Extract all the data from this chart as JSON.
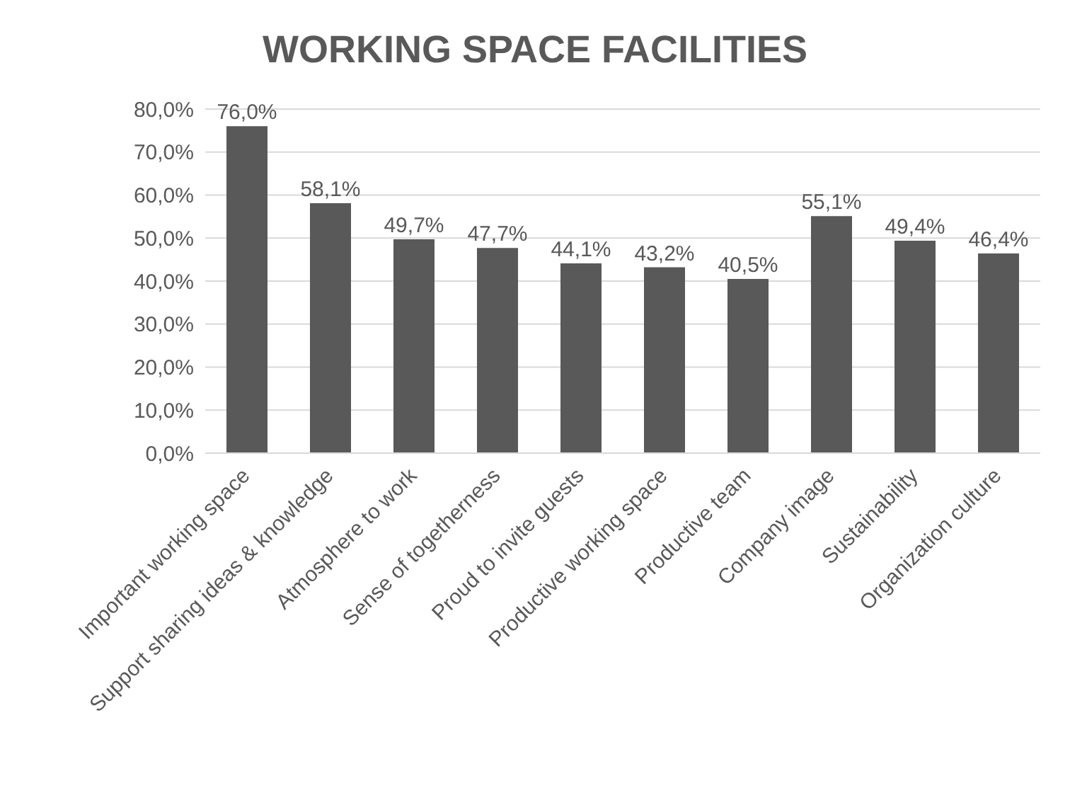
{
  "chart_data": {
    "type": "bar",
    "title": "WORKING SPACE FACILITIES",
    "categories": [
      "Important working space",
      "Support sharing ideas & knowledge",
      "Atmosphere to work",
      "Sense of togetherness",
      "Proud to invite guests",
      "Productive working space",
      "Productive team",
      "Company image",
      "Sustainability",
      "Organization culture"
    ],
    "values": [
      76.0,
      58.1,
      49.7,
      47.7,
      44.1,
      43.2,
      40.5,
      55.1,
      49.4,
      46.4
    ],
    "value_labels": [
      "76,0%",
      "58,1%",
      "49,7%",
      "47,7%",
      "44,1%",
      "43,2%",
      "40,5%",
      "55,1%",
      "49,4%",
      "46,4%"
    ],
    "color": "#595959",
    "ylim": [
      0,
      80
    ],
    "yticks": [
      {
        "value": 0,
        "label": "0,0%"
      },
      {
        "value": 10,
        "label": "10,0%"
      },
      {
        "value": 20,
        "label": "20,0%"
      },
      {
        "value": 30,
        "label": "30,0%"
      },
      {
        "value": 40,
        "label": "40,0%"
      },
      {
        "value": 50,
        "label": "50,0%"
      },
      {
        "value": 60,
        "label": "60,0%"
      },
      {
        "value": 70,
        "label": "70,0%"
      },
      {
        "value": 80,
        "label": "80,0%"
      }
    ],
    "grid": "y"
  }
}
